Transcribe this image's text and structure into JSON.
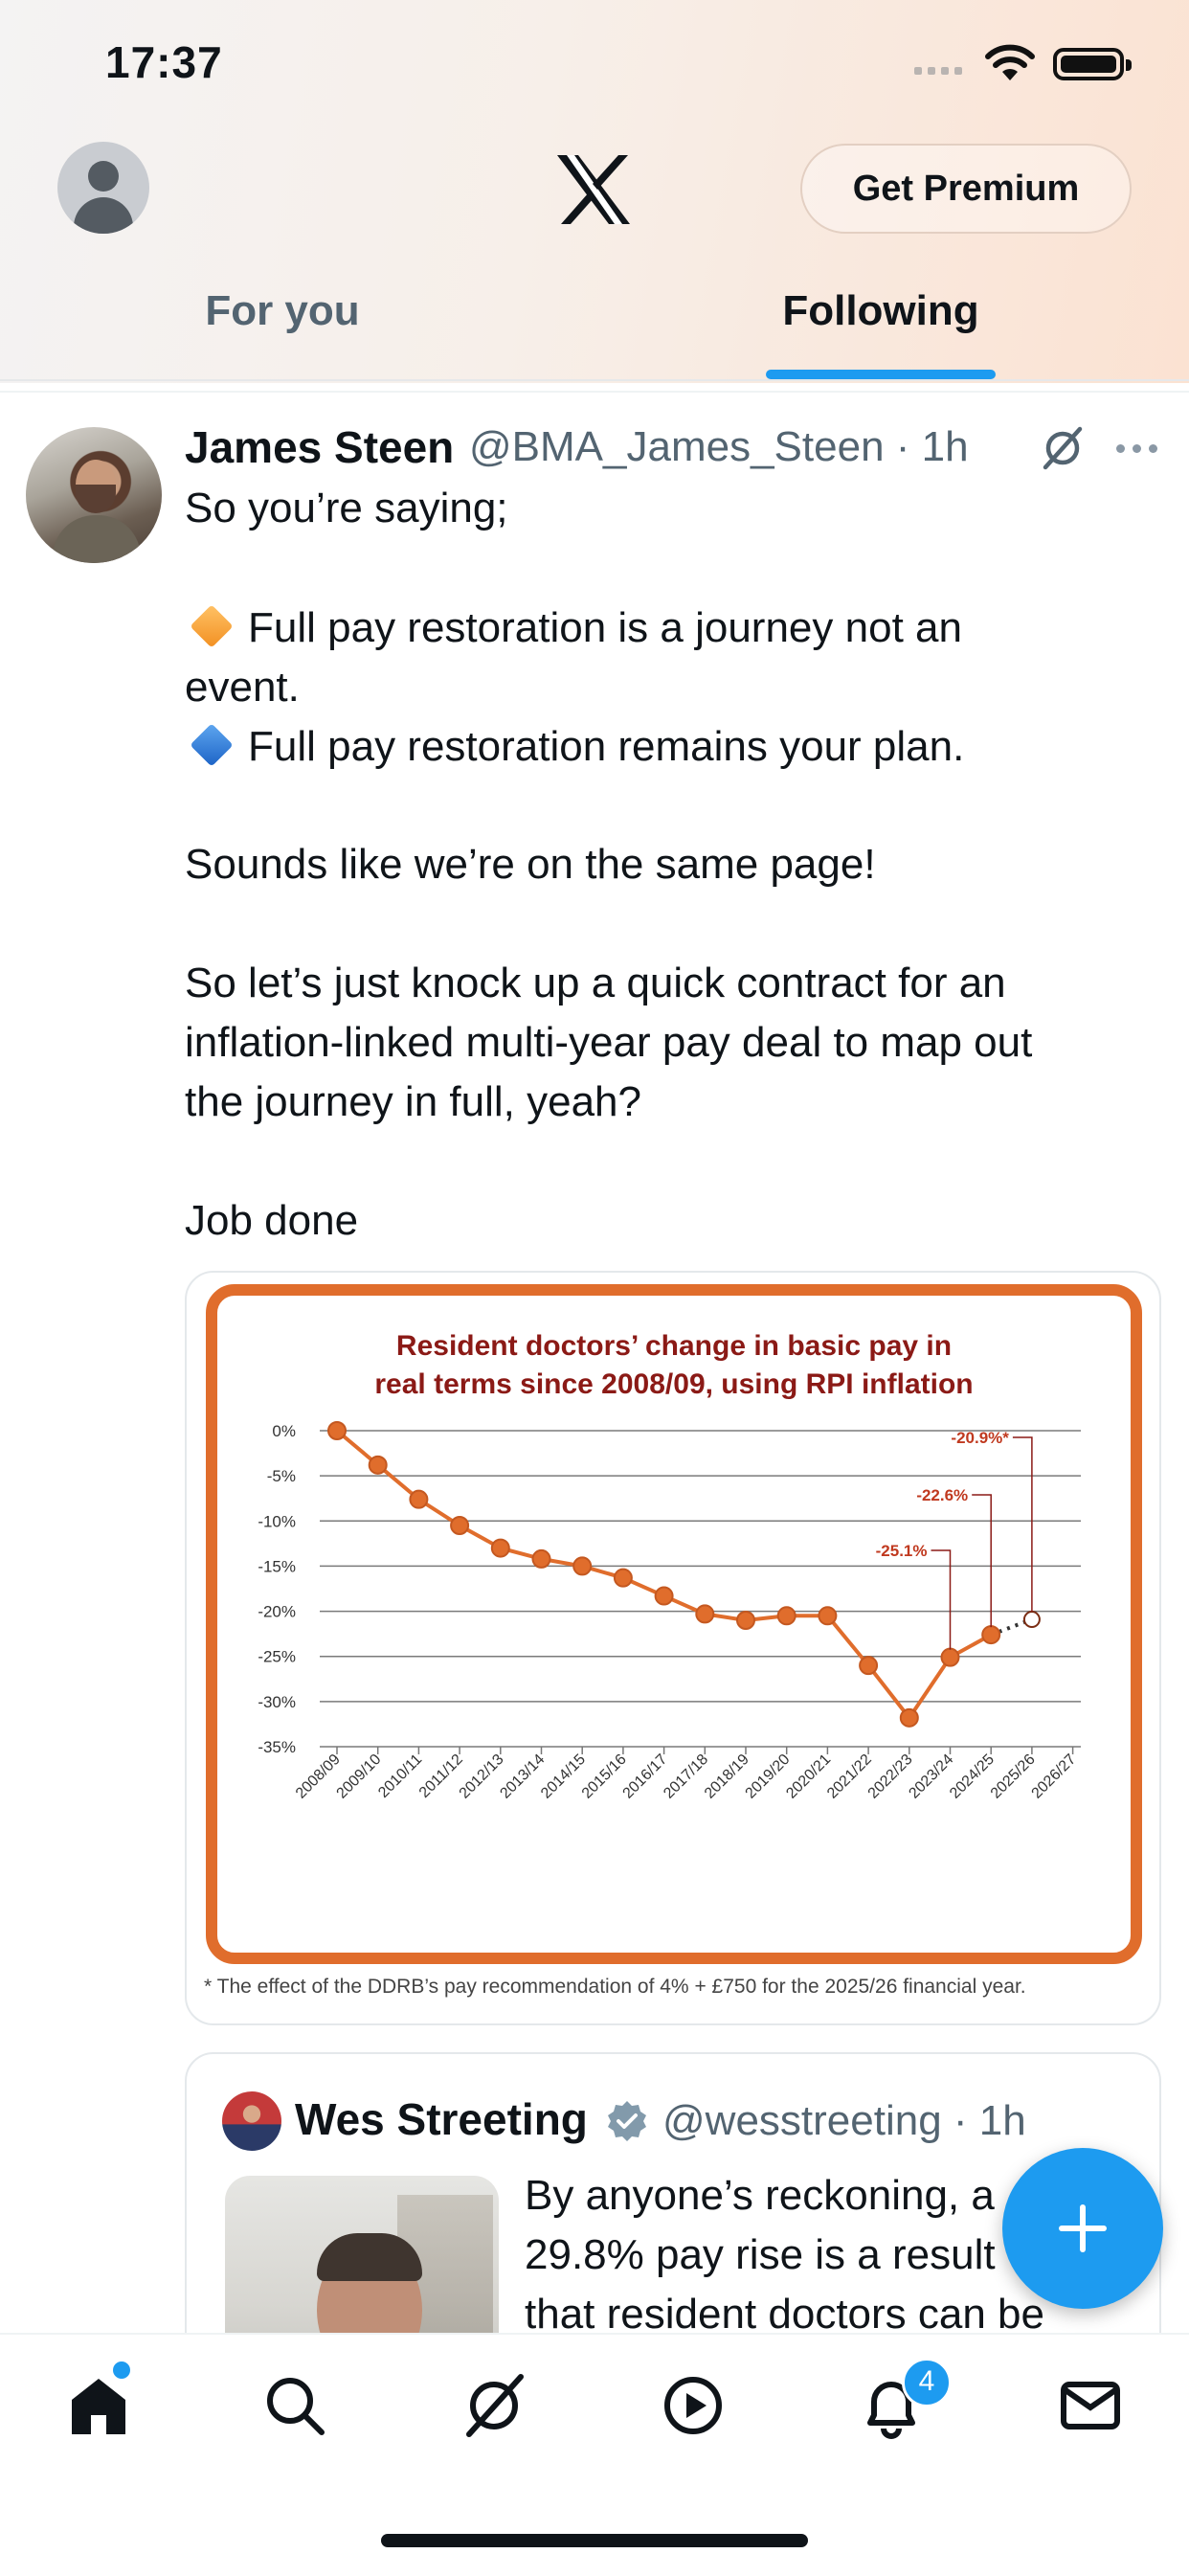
{
  "status_bar": {
    "time": "17:37"
  },
  "header": {
    "premium_label": "Get Premium",
    "tabs": [
      {
        "label": "For you",
        "active": false
      },
      {
        "label": "Following",
        "active": true
      }
    ],
    "accent_color": "#1d9bf0"
  },
  "tweet": {
    "author_name": "James Steen",
    "author_handle": "@BMA_James_Steen · 1h",
    "lines": [
      "So you’re saying;",
      "",
      "Full pay restoration is a journey not an",
      "event.",
      "Full pay restoration remains your plan.",
      "",
      "Sounds like we’re on the same page!",
      "",
      "So let’s just knock up a quick contract for an",
      "inflation-linked multi-year pay deal to map out",
      "the journey in full, yeah?",
      "",
      "Job done"
    ],
    "image_footnote": "* The effect of the DDRB’s pay recommendation of 4% + £750 for the 2025/26 financial year."
  },
  "chart_data": {
    "type": "line",
    "title": "Resident doctors’ change in basic pay in real terms since 2008/09, using RPI inflation",
    "categories": [
      "2008/09",
      "2009/10",
      "2010/11",
      "2011/12",
      "2012/13",
      "2013/14",
      "2014/15",
      "2015/16",
      "2016/17",
      "2017/18",
      "2018/19",
      "2019/20",
      "2020/21",
      "2021/22",
      "2022/23",
      "2023/24",
      "2024/25",
      "2025/26",
      "2026/27"
    ],
    "series": [
      {
        "values": [
          0,
          -3.8,
          -7.6,
          -10.5,
          -13.0,
          -14.2,
          -15.0,
          -16.3,
          -18.3,
          -20.3,
          -21.0,
          -20.5,
          -20.5,
          -26.0,
          -31.8,
          -25.1,
          -22.6,
          -20.9,
          null
        ]
      }
    ],
    "projection_segment": {
      "from": "2024/25",
      "to": "2025/26",
      "style": "dotted"
    },
    "annotations": [
      {
        "category": "2023/24",
        "label": "-25.1%"
      },
      {
        "category": "2024/25",
        "label": "-22.6%"
      },
      {
        "category": "2025/26",
        "label": "-20.9%*"
      }
    ],
    "y_ticks": [
      "0%",
      "-5%",
      "-10%",
      "-15%",
      "-20%",
      "-25%",
      "-30%",
      "-35%"
    ],
    "ylim": [
      -35,
      0
    ],
    "grid": true,
    "line_color": "#e06d2c",
    "frame_color": "#e06d2c",
    "title_color": "#8b1a16"
  },
  "quoted_tweet": {
    "author_name": "Wes Streeting",
    "author_handle": "@wesstreeting · 1h",
    "lines": [
      "By anyone’s reckoning, a",
      "29.8% pay rise is a result",
      "that resident doctors can be"
    ]
  },
  "bottom_nav": {
    "items": [
      "home-icon",
      "search-icon",
      "grok-icon",
      "video-icon",
      "notifications-icon",
      "messages-icon"
    ],
    "notification_count": "4"
  }
}
